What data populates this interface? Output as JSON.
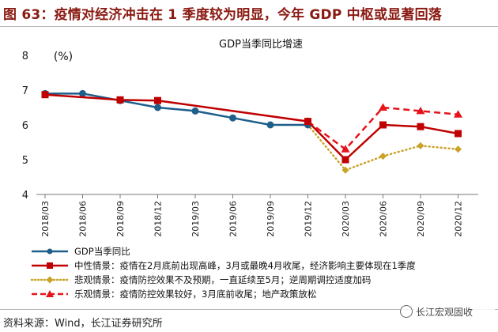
{
  "figure_title": "图 63：疫情对经济冲击在 1 季度较为明显，今年 GDP 中枢或显著回落",
  "source": "资料来源：Wind，长江证券研究所",
  "watermark": "长江宏观固收",
  "colors": {
    "title": "#8a1a12",
    "actual": "#1f5f8b",
    "neutral": "#c00000",
    "pessimistic": "#c9a227",
    "optimistic": "#e8121a"
  },
  "chart_data": {
    "type": "line",
    "title": "GDP当季同比增速",
    "ylabel": "(%)",
    "ylim": [
      4,
      8
    ],
    "yticks": [
      4,
      5,
      6,
      7,
      8
    ],
    "categories": [
      "2018/03",
      "2018/06",
      "2018/09",
      "2018/12",
      "2019/03",
      "2019/06",
      "2019/09",
      "2019/12",
      "2020/03",
      "2020/06",
      "2020/09",
      "2020/12"
    ],
    "grid": false,
    "legend_position": "bottom",
    "series": [
      {
        "name": "GDP当季同比",
        "style": "solid-circle",
        "color": "#1f5f8b",
        "values": [
          6.9,
          6.9,
          6.7,
          6.5,
          6.4,
          6.2,
          6.0,
          6.0,
          null,
          null,
          null,
          null
        ]
      },
      {
        "name": "中性情景：疫情在2月底前出现高峰，3月或最晚4月收尾，经济影响主要体现在1季度",
        "style": "solid-square",
        "color": "#c00000",
        "values": [
          6.87,
          null,
          6.72,
          6.7,
          null,
          null,
          null,
          6.1,
          5.0,
          6.0,
          5.95,
          5.75
        ]
      },
      {
        "name": "悲观情景：疫情防控效果不及预期，一直延续至5月；逆周期调控适度加码",
        "style": "dotted-diamond",
        "color": "#c9a227",
        "values": [
          null,
          null,
          null,
          null,
          null,
          null,
          null,
          6.0,
          4.7,
          5.1,
          5.4,
          5.3
        ]
      },
      {
        "name": "乐观情景：疫情防控效果较好，3月底前收尾；地产政策放松",
        "style": "dashed-triangle",
        "color": "#e8121a",
        "values": [
          null,
          null,
          null,
          null,
          null,
          null,
          null,
          6.1,
          5.3,
          6.5,
          6.4,
          6.3
        ]
      }
    ]
  }
}
